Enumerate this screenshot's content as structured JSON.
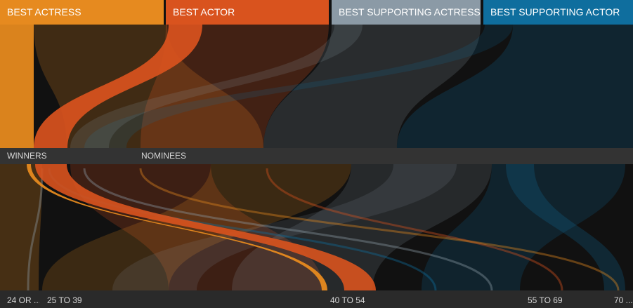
{
  "colors": {
    "background": "#111111",
    "best_actress": "#e68a1f",
    "best_actor": "#d9531e",
    "best_supporting_actress": "#8b9aa6",
    "best_supporting_actor": "#0f6e9e",
    "band": "#3a3a3a"
  },
  "categories": [
    {
      "key": "best_actress",
      "label": "BEST ACTRESS"
    },
    {
      "key": "best_actor",
      "label": "BEST ACTOR"
    },
    {
      "key": "best_supporting_actress",
      "label": "BEST SUPPORTING ACTRESS"
    },
    {
      "key": "best_supporting_actor",
      "label": "BEST SUPPORTING ACTOR"
    }
  ],
  "outcomes": [
    {
      "key": "winners",
      "label": "WINNERS"
    },
    {
      "key": "nominees",
      "label": "NOMINEES"
    }
  ],
  "age_groups": [
    {
      "key": "24_or_younger",
      "label": "24 OR ..."
    },
    {
      "key": "25_to_39",
      "label": "25 TO 39"
    },
    {
      "key": "40_to_54",
      "label": "40 TO 54"
    },
    {
      "key": "55_to_69",
      "label": "55 TO 69"
    },
    {
      "key": "70_plus",
      "label": "70 ..."
    }
  ]
}
